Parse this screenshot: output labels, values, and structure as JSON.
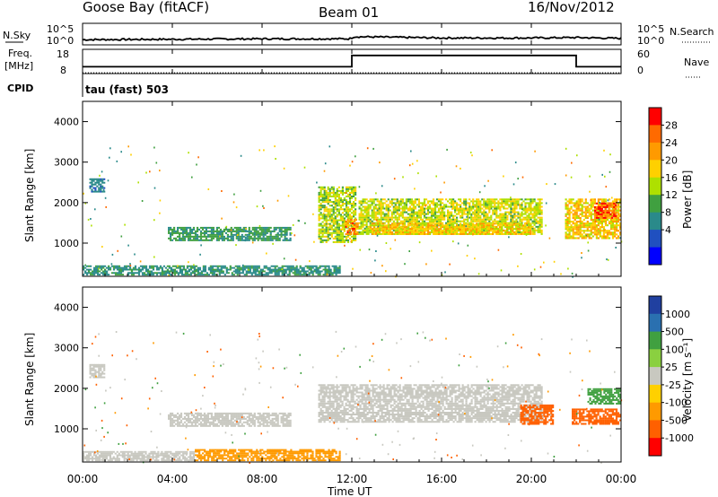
{
  "header": {
    "station": "Goose Bay (fitACF)",
    "beam": "Beam 01",
    "date": "16/Nov/2012"
  },
  "noise_panel": {
    "left_label": "N.Sky",
    "right_label": "N.Search",
    "left_ticks": [
      "10^5",
      "10^0"
    ],
    "right_ticks": [
      "10^5",
      "10^0"
    ]
  },
  "freq_panel": {
    "left_label_line1": "Freq.",
    "left_label_line2": "[MHz]",
    "right_label": "Nave",
    "left_ticks": [
      "18",
      "8"
    ],
    "right_ticks": [
      "60",
      "0"
    ]
  },
  "cpid": {
    "label": "CPID",
    "value": "tau (fast) 503"
  },
  "x_axis": {
    "label": "Time UT",
    "ticks": [
      "00:00",
      "04:00",
      "08:00",
      "12:00",
      "16:00",
      "20:00",
      "00:00"
    ]
  },
  "power_panel": {
    "ylabel": "Slant Range [km]",
    "colorbar_label": "Power [dB]",
    "colorbar_ticks": [
      "28",
      "24",
      "20",
      "16",
      "12",
      "8",
      "4"
    ],
    "colors": [
      "#ff0000",
      "#ff6a00",
      "#ff9a00",
      "#ffd000",
      "#aee000",
      "#40a040",
      "#2a8a8a",
      "#2050c0",
      "#0000ff"
    ]
  },
  "velocity_panel": {
    "ylabel": "Slant Range [km]",
    "colorbar_label": "Velocity [m s⁻¹]",
    "colorbar_ticks": [
      "1000",
      "500",
      "100",
      "25",
      "-25",
      "-100",
      "-500",
      "-1000"
    ],
    "colors": [
      "#2040a0",
      "#2a70b0",
      "#40a040",
      "#8ad040",
      "#c8c8c0",
      "#ffd000",
      "#ff9a00",
      "#ff6000",
      "#ff0000"
    ]
  },
  "chart_data": [
    {
      "type": "line",
      "title": "N.Sky / N.Search",
      "x_range": [
        "00:00",
        "24:00"
      ],
      "ylim_log10": [
        0,
        5
      ],
      "series": [
        {
          "name": "N.Sky",
          "x": [
            0,
            4,
            8,
            11.9,
            12.1,
            16,
            20,
            22,
            24
          ],
          "y_log10": [
            1.2,
            1.3,
            1.4,
            1.4,
            1.9,
            1.6,
            1.6,
            1.7,
            1.5
          ]
        }
      ]
    },
    {
      "type": "line",
      "title": "Freq. [MHz] / Nave",
      "x": [
        0,
        12,
        12,
        22,
        22,
        24
      ],
      "series": [
        {
          "name": "Freq.",
          "values": [
            10.8,
            10.8,
            15.5,
            15.5,
            10.8,
            10.8
          ]
        },
        {
          "name": "Nave",
          "values": [
            2,
            2,
            2,
            2,
            2,
            2
          ]
        }
      ],
      "ylim": [
        8,
        18
      ],
      "y2lim": [
        0,
        60
      ]
    },
    {
      "type": "heatmap",
      "title": "Power [dB]",
      "xlabel": "Time UT",
      "ylabel": "Slant Range [km]",
      "x_range_hours": [
        0,
        24
      ],
      "ylim": [
        180,
        4500
      ],
      "yticks": [
        1000,
        2000,
        3000,
        4000
      ],
      "colorbar": {
        "label": "Power [dB]",
        "ticks": [
          4,
          8,
          12,
          16,
          20,
          24,
          28
        ]
      },
      "regions": [
        {
          "t0": 0,
          "t1": 11.5,
          "r0": 200,
          "r1": 450,
          "value": 8
        },
        {
          "t0": 0.3,
          "t1": 1.0,
          "r0": 2250,
          "r1": 2600,
          "value": 6
        },
        {
          "t0": 3.8,
          "t1": 9.3,
          "r0": 1050,
          "r1": 1400,
          "value": 9
        },
        {
          "t0": 10.5,
          "t1": 12.2,
          "r0": 1000,
          "r1": 2400,
          "value": 14
        },
        {
          "t0": 11.7,
          "t1": 12.3,
          "r0": 1200,
          "r1": 1600,
          "value": 22
        },
        {
          "t0": 12.3,
          "t1": 20.5,
          "r0": 1200,
          "r1": 2100,
          "value": 15
        },
        {
          "t0": 12.8,
          "t1": 20.0,
          "r0": 1200,
          "r1": 1500,
          "value": 18
        },
        {
          "t0": 21.5,
          "t1": 24,
          "r0": 1100,
          "r1": 2100,
          "value": 18
        },
        {
          "t0": 22.8,
          "t1": 23.8,
          "r0": 1600,
          "r1": 2000,
          "value": 26
        }
      ]
    },
    {
      "type": "heatmap",
      "title": "Velocity [m s⁻¹]",
      "xlabel": "Time UT",
      "ylabel": "Slant Range [km]",
      "x_range_hours": [
        0,
        24
      ],
      "ylim": [
        180,
        4500
      ],
      "yticks": [
        1000,
        2000,
        3000,
        4000
      ],
      "colorbar": {
        "label": "Velocity [m s⁻¹]",
        "ticks": [
          -1000,
          -500,
          -100,
          -25,
          25,
          100,
          500,
          1000
        ]
      },
      "regions": [
        {
          "t0": 0,
          "t1": 5.0,
          "r0": 200,
          "r1": 450,
          "value": 0
        },
        {
          "t0": 5.0,
          "t1": 11.5,
          "r0": 200,
          "r1": 500,
          "value": -80
        },
        {
          "t0": 0.3,
          "t1": 1.0,
          "r0": 2250,
          "r1": 2600,
          "value": 0
        },
        {
          "t0": 3.8,
          "t1": 9.3,
          "r0": 1050,
          "r1": 1400,
          "value": 0
        },
        {
          "t0": 10.5,
          "t1": 20.5,
          "r0": 1150,
          "r1": 2100,
          "value": 0
        },
        {
          "t0": 19.5,
          "t1": 21.0,
          "r0": 1100,
          "r1": 1600,
          "value": -200
        },
        {
          "t0": 21.8,
          "t1": 24,
          "r0": 1100,
          "r1": 1500,
          "value": -300
        },
        {
          "t0": 22.5,
          "t1": 24,
          "r0": 1600,
          "r1": 2000,
          "value": 200
        }
      ]
    }
  ]
}
